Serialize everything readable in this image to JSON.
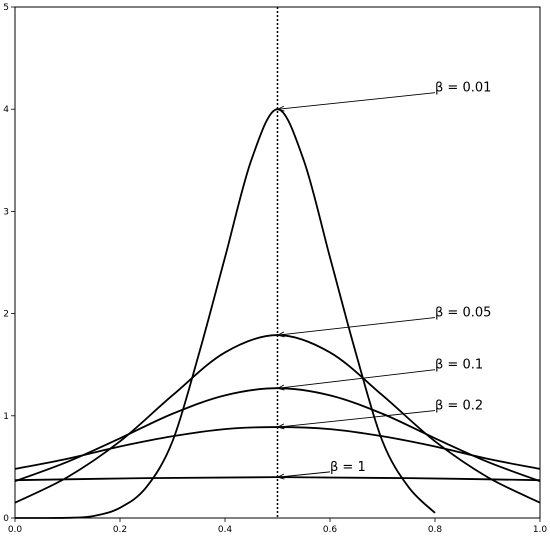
{
  "chart_data": {
    "type": "line",
    "title": "",
    "xlabel": "",
    "ylabel": "",
    "xlim": [
      0,
      1
    ],
    "ylim": [
      0,
      5
    ],
    "x_ticks": [
      0.0,
      0.2,
      0.4,
      0.6,
      0.8,
      1.0
    ],
    "x_tick_labels": [
      "0.0",
      "0.2",
      "0.4",
      "0.6",
      "0.8",
      "1.0"
    ],
    "y_ticks": [
      0,
      1,
      2,
      3,
      4,
      5
    ],
    "y_tick_labels": [
      "0",
      "1",
      "2",
      "3",
      "4",
      "5"
    ],
    "grid": false,
    "legend": "none",
    "reference_line": {
      "x": 0.5,
      "style": "dotted"
    },
    "series": [
      {
        "beta": 0.01,
        "points": [
          [
            0.0,
            0.0
          ],
          [
            0.1,
            0.002
          ],
          [
            0.15,
            0.02
          ],
          [
            0.2,
            0.1
          ],
          [
            0.25,
            0.3
          ],
          [
            0.3,
            0.75
          ],
          [
            0.35,
            1.6
          ],
          [
            0.4,
            2.55
          ],
          [
            0.45,
            3.5
          ],
          [
            0.5,
            4.0
          ],
          [
            0.55,
            3.5
          ],
          [
            0.6,
            2.55
          ],
          [
            0.65,
            1.6
          ],
          [
            0.7,
            0.75
          ],
          [
            0.75,
            0.3
          ],
          [
            0.8,
            0.05
          ]
        ]
      },
      {
        "beta": 0.05,
        "points": [
          [
            0.0,
            0.15
          ],
          [
            0.1,
            0.4
          ],
          [
            0.2,
            0.75
          ],
          [
            0.3,
            1.2
          ],
          [
            0.4,
            1.62
          ],
          [
            0.5,
            1.79
          ],
          [
            0.6,
            1.62
          ],
          [
            0.7,
            1.2
          ],
          [
            0.8,
            0.75
          ],
          [
            0.9,
            0.4
          ],
          [
            1.0,
            0.15
          ]
        ]
      },
      {
        "beta": 0.1,
        "points": [
          [
            0.0,
            0.36
          ],
          [
            0.1,
            0.55
          ],
          [
            0.2,
            0.78
          ],
          [
            0.3,
            1.02
          ],
          [
            0.4,
            1.2
          ],
          [
            0.5,
            1.27
          ],
          [
            0.6,
            1.2
          ],
          [
            0.7,
            1.02
          ],
          [
            0.8,
            0.78
          ],
          [
            0.9,
            0.55
          ],
          [
            1.0,
            0.36
          ]
        ]
      },
      {
        "beta": 0.2,
        "points": [
          [
            0.0,
            0.48
          ],
          [
            0.1,
            0.58
          ],
          [
            0.2,
            0.7
          ],
          [
            0.3,
            0.8
          ],
          [
            0.4,
            0.87
          ],
          [
            0.5,
            0.89
          ],
          [
            0.6,
            0.87
          ],
          [
            0.7,
            0.8
          ],
          [
            0.8,
            0.7
          ],
          [
            0.9,
            0.58
          ],
          [
            1.0,
            0.48
          ]
        ]
      },
      {
        "beta": 1,
        "points": [
          [
            0.0,
            0.37
          ],
          [
            0.25,
            0.39
          ],
          [
            0.5,
            0.4
          ],
          [
            0.75,
            0.39
          ],
          [
            1.0,
            0.37
          ]
        ]
      }
    ],
    "annotations": [
      {
        "label": "β = 0.01",
        "target": [
          0.5,
          4.0
        ],
        "text_at": [
          0.8,
          4.22
        ]
      },
      {
        "label": "β = 0.05",
        "target": [
          0.5,
          1.79
        ],
        "text_at": [
          0.8,
          2.02
        ]
      },
      {
        "label": "β = 0.1",
        "target": [
          0.5,
          1.27
        ],
        "text_at": [
          0.8,
          1.51
        ]
      },
      {
        "label": "β = 0.2",
        "target": [
          0.5,
          0.89
        ],
        "text_at": [
          0.8,
          1.11
        ]
      },
      {
        "label": "β = 1",
        "target": [
          0.5,
          0.4
        ],
        "text_at": [
          0.6,
          0.51
        ]
      }
    ]
  }
}
